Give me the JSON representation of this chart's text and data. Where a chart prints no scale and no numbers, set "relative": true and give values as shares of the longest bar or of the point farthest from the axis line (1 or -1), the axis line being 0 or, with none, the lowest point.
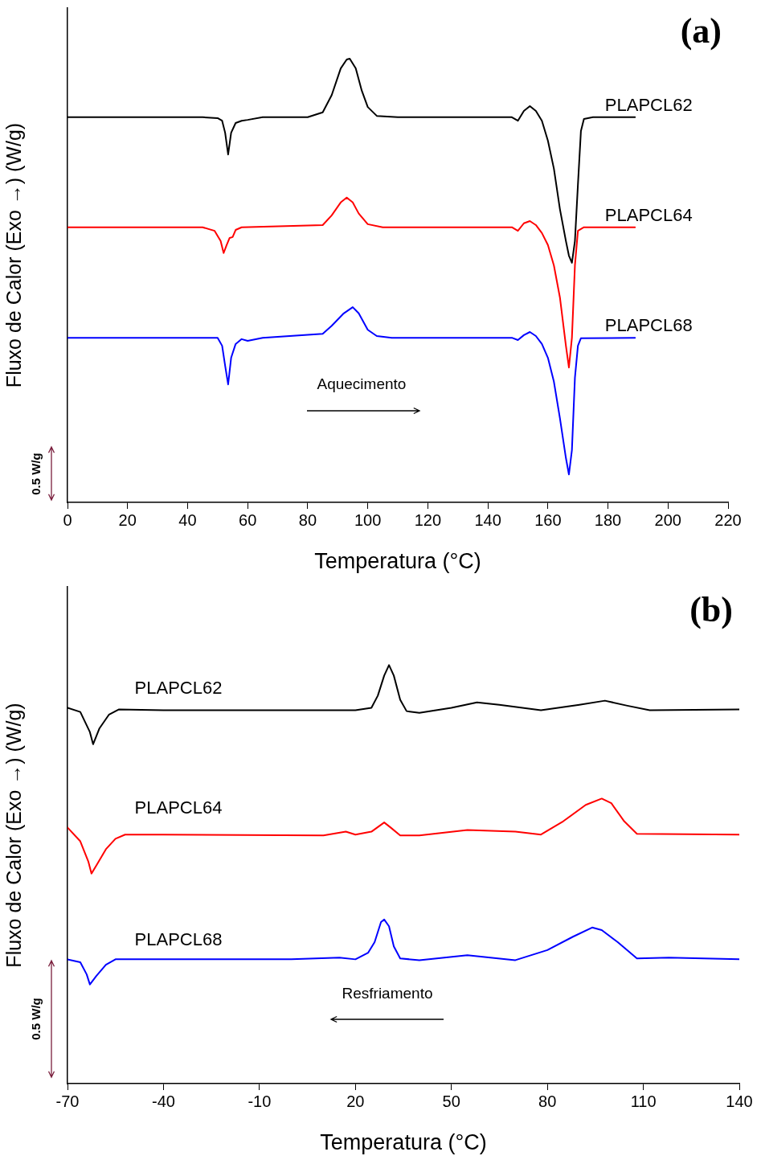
{
  "chart_data": [
    {
      "type": "line",
      "title": "(a)",
      "xlabel": "Temperatura (°C)",
      "ylabel": "Fluxo de Calor (Exo →) (W/g)",
      "relative": true,
      "xlim": [
        0,
        220
      ],
      "xticks": [
        0,
        20,
        40,
        60,
        80,
        100,
        120,
        140,
        160,
        180,
        200,
        220
      ],
      "grid": false,
      "legend": false,
      "marker": "none",
      "line_style": "solid",
      "annotations": [
        "Aquecimento",
        "0.5 W/g"
      ],
      "series": [
        {
          "name": "PLAPCL62",
          "color": "#000000",
          "x": [
            0,
            45,
            50,
            51.5,
            52.5,
            53.5,
            54.5,
            56,
            58,
            60,
            65,
            80,
            85,
            88,
            91,
            93,
            94,
            96,
            98,
            100,
            103,
            110,
            148,
            150,
            152,
            154,
            156,
            158,
            160,
            162,
            164,
            166,
            167,
            168,
            169,
            170,
            171,
            172,
            175,
            189
          ],
          "values": [
            0.868,
            0.868,
            0.866,
            0.86,
            0.833,
            0.784,
            0.833,
            0.855,
            0.86,
            0.862,
            0.868,
            0.868,
            0.879,
            0.918,
            0.978,
            0.998,
            1,
            0.978,
            0.928,
            0.891,
            0.871,
            0.868,
            0.868,
            0.86,
            0.882,
            0.893,
            0.882,
            0.86,
            0.815,
            0.752,
            0.661,
            0.589,
            0.556,
            0.54,
            0.589,
            0.716,
            0.837,
            0.864,
            0.868,
            0.868
          ]
        },
        {
          "name": "PLAPCL64",
          "color": "#ff0000",
          "x": [
            0,
            45,
            49,
            51,
            52,
            53,
            54,
            55,
            56,
            58,
            85,
            88,
            91,
            93,
            95,
            97,
            100,
            105,
            148,
            150,
            152,
            154,
            156,
            158,
            160,
            162,
            164,
            166,
            167,
            168,
            169,
            170,
            172,
            189
          ],
          "values": [
            0.62,
            0.62,
            0.612,
            0.589,
            0.562,
            0.58,
            0.596,
            0.598,
            0.614,
            0.62,
            0.625,
            0.647,
            0.676,
            0.687,
            0.676,
            0.651,
            0.627,
            0.62,
            0.62,
            0.612,
            0.629,
            0.634,
            0.625,
            0.607,
            0.58,
            0.534,
            0.462,
            0.353,
            0.304,
            0.371,
            0.534,
            0.612,
            0.62,
            0.62
          ]
        },
        {
          "name": "PLAPCL68",
          "color": "#0000ff",
          "x": [
            0,
            50,
            51.5,
            52.5,
            53.5,
            54.5,
            56,
            58,
            60,
            65,
            85,
            88,
            92,
            95,
            97,
            100,
            103,
            108,
            148,
            150,
            152,
            154,
            156,
            158,
            160,
            162,
            164,
            166,
            167,
            168,
            169,
            170,
            171,
            189
          ],
          "values": [
            0.371,
            0.371,
            0.353,
            0.308,
            0.266,
            0.326,
            0.357,
            0.368,
            0.364,
            0.371,
            0.38,
            0.398,
            0.426,
            0.44,
            0.426,
            0.389,
            0.375,
            0.371,
            0.371,
            0.366,
            0.377,
            0.384,
            0.375,
            0.357,
            0.326,
            0.272,
            0.19,
            0.1,
            0.063,
            0.118,
            0.281,
            0.353,
            0.37,
            0.371
          ]
        }
      ]
    },
    {
      "type": "line",
      "title": "(b)",
      "xlabel": "Temperatura (°C)",
      "ylabel": "Fluxo de Calor (Exo →) (W/g)",
      "relative": true,
      "xlim": [
        -70,
        140
      ],
      "xticks": [
        -70,
        -40,
        -10,
        20,
        50,
        80,
        110,
        140
      ],
      "grid": false,
      "legend": false,
      "marker": "none",
      "line_style": "solid",
      "annotations": [
        "Resfriamento",
        "0.5 W/g"
      ],
      "series": [
        {
          "name": "PLAPCL62",
          "color": "#000000",
          "x": [
            -70,
            -66,
            -63,
            -62,
            -60,
            -57,
            -54,
            -40,
            20,
            25,
            27,
            29,
            30.5,
            32,
            34,
            36,
            40,
            50,
            58,
            65,
            78,
            90,
            98,
            105,
            112,
            140
          ],
          "values": [
            0.898,
            0.888,
            0.84,
            0.811,
            0.849,
            0.882,
            0.894,
            0.892,
            0.892,
            0.898,
            0.927,
            0.975,
            1,
            0.975,
            0.917,
            0.89,
            0.886,
            0.898,
            0.911,
            0.905,
            0.892,
            0.905,
            0.915,
            0.903,
            0.892,
            0.894
          ]
        },
        {
          "name": "PLAPCL64",
          "color": "#ff0000",
          "x": [
            -70,
            -66,
            -63.5,
            -62.5,
            -61,
            -58,
            -55,
            -52,
            -40,
            10,
            17,
            20,
            25,
            29,
            31,
            34,
            40,
            55,
            70,
            78,
            85,
            92,
            97,
            100,
            104,
            108,
            140
          ],
          "values": [
            0.612,
            0.579,
            0.531,
            0.502,
            0.521,
            0.56,
            0.585,
            0.595,
            0.595,
            0.593,
            0.602,
            0.595,
            0.602,
            0.624,
            0.612,
            0.593,
            0.593,
            0.606,
            0.602,
            0.595,
            0.627,
            0.666,
            0.681,
            0.67,
            0.627,
            0.597,
            0.595
          ]
        },
        {
          "name": "PLAPCL68",
          "color": "#0000ff",
          "x": [
            -70,
            -66,
            -64,
            -63,
            -61,
            -58,
            -55,
            0,
            15,
            20,
            24,
            26,
            28,
            29,
            30.5,
            32,
            34,
            40,
            55,
            70,
            80,
            88,
            94,
            97,
            102,
            108,
            118,
            140
          ],
          "values": [
            0.297,
            0.29,
            0.261,
            0.237,
            0.257,
            0.284,
            0.297,
            0.297,
            0.301,
            0.297,
            0.313,
            0.338,
            0.386,
            0.392,
            0.376,
            0.328,
            0.299,
            0.295,
            0.307,
            0.295,
            0.319,
            0.351,
            0.373,
            0.367,
            0.338,
            0.299,
            0.301,
            0.297
          ]
        }
      ]
    }
  ]
}
